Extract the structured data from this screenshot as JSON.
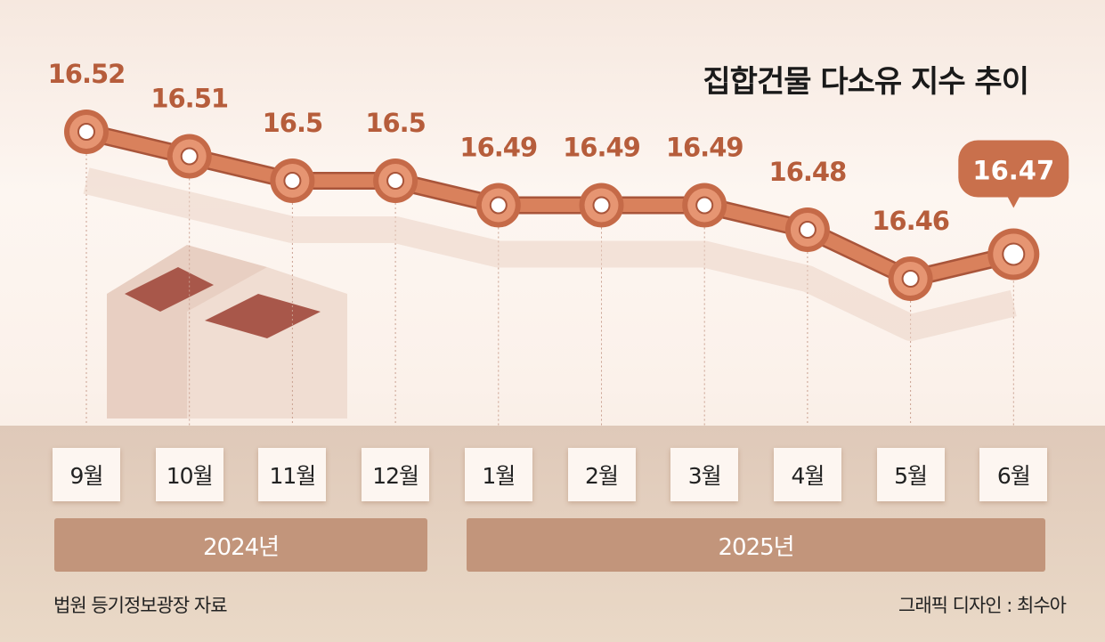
{
  "chart_data": {
    "type": "line",
    "title": "집합건물 다소유 지수 추이",
    "categories": [
      "9월",
      "10월",
      "11월",
      "12월",
      "1월",
      "2월",
      "3월",
      "4월",
      "5월",
      "6월"
    ],
    "years": [
      {
        "label": "2024년",
        "span": 4
      },
      {
        "label": "2025년",
        "span": 6
      }
    ],
    "values": [
      16.52,
      16.51,
      16.5,
      16.5,
      16.49,
      16.49,
      16.49,
      16.48,
      16.46,
      16.47
    ],
    "value_labels": [
      "16.52",
      "16.51",
      "16.5",
      "16.5",
      "16.49",
      "16.49",
      "16.49",
      "16.48",
      "16.46",
      "16.47"
    ],
    "highlight_last": true,
    "grid": false,
    "line_color": "#d9815c",
    "label_color": "#b65d3b"
  },
  "source": "법원 등기정보광장 자료",
  "credit": "그래픽 디자인 : 최수아"
}
